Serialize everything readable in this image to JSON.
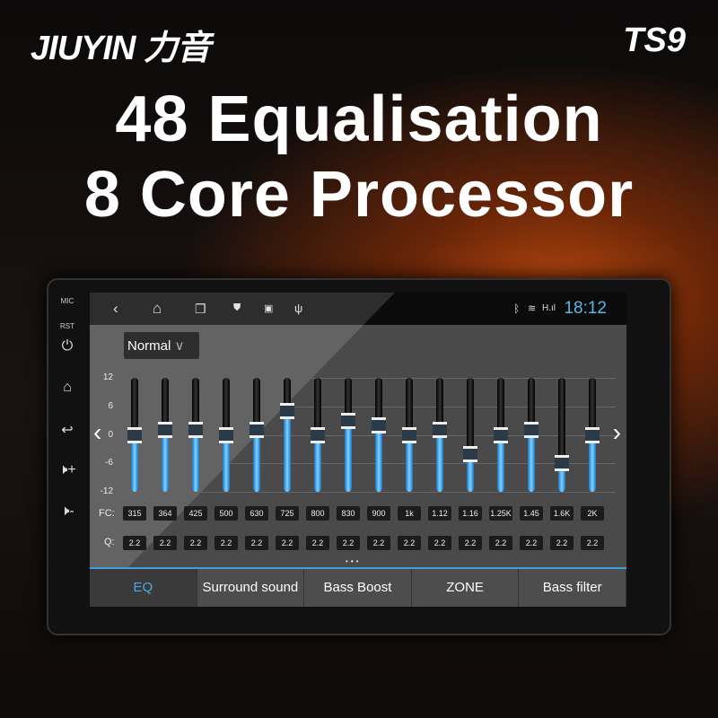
{
  "brand": "JIUYIN 力音",
  "model": "TS9",
  "headline1": "48  Equalisation",
  "headline2": "8 Core Processor",
  "side": {
    "mic": "MIC",
    "rst": "RST"
  },
  "status": {
    "time": "18:12",
    "icons": [
      "back-icon",
      "home-icon",
      "recents-icon",
      "shield-icon",
      "image-icon",
      "usb-icon",
      "bluetooth-icon",
      "wifi-icon",
      "signal-icon"
    ]
  },
  "preset": {
    "value": "Normal"
  },
  "y_ticks": [
    "12",
    "6",
    "0",
    "-6",
    "-12"
  ],
  "fc_label": "FC:",
  "q_label": "Q:",
  "bands": [
    {
      "fc": "315",
      "q": "2.2",
      "gain": 0
    },
    {
      "fc": "364",
      "q": "2.2",
      "gain": 1
    },
    {
      "fc": "425",
      "q": "2.2",
      "gain": 1
    },
    {
      "fc": "500",
      "q": "2.2",
      "gain": 0
    },
    {
      "fc": "630",
      "q": "2.2",
      "gain": 1
    },
    {
      "fc": "725",
      "q": "2.2",
      "gain": 5
    },
    {
      "fc": "800",
      "q": "2.2",
      "gain": 0
    },
    {
      "fc": "830",
      "q": "2.2",
      "gain": 3
    },
    {
      "fc": "900",
      "q": "2.2",
      "gain": 2
    },
    {
      "fc": "1k",
      "q": "2.2",
      "gain": 0
    },
    {
      "fc": "1.12",
      "q": "2.2",
      "gain": 1
    },
    {
      "fc": "1.16",
      "q": "2.2",
      "gain": -4
    },
    {
      "fc": "1.25K",
      "q": "2.2",
      "gain": 0
    },
    {
      "fc": "1.45",
      "q": "2.2",
      "gain": 1
    },
    {
      "fc": "1.6K",
      "q": "2.2",
      "gain": -6
    },
    {
      "fc": "2K",
      "q": "2.2",
      "gain": 0
    }
  ],
  "gain_range": [
    -12,
    12
  ],
  "accent": "#4aa8e8",
  "tabs": [
    {
      "label": "EQ",
      "active": true
    },
    {
      "label": "Surround sound"
    },
    {
      "label": "Bass Boost"
    },
    {
      "label": "ZONE"
    },
    {
      "label": "Bass filter"
    }
  ]
}
